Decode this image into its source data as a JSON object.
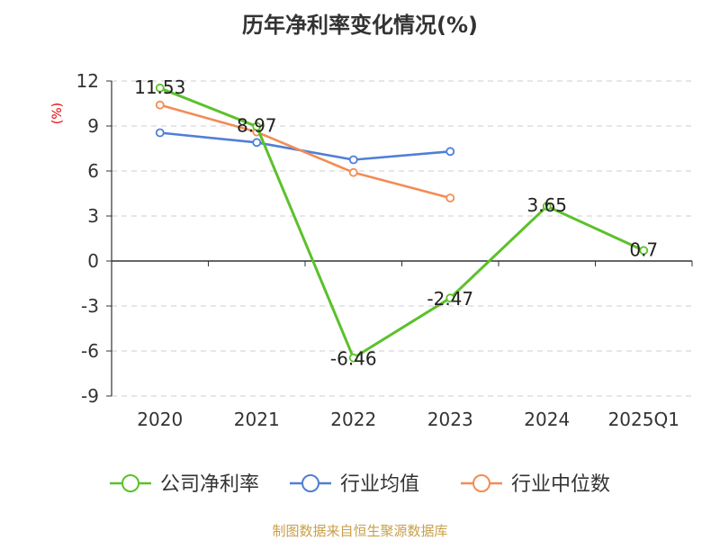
{
  "chart_data": {
    "type": "line",
    "title": "历年净利率变化情况(%)",
    "ylabel": "(%)",
    "xlabel": "",
    "categories": [
      "2020",
      "2021",
      "2022",
      "2023",
      "2024",
      "2025Q1"
    ],
    "ylim": [
      -9,
      12
    ],
    "yticks": [
      12,
      9,
      6,
      3,
      0,
      -3,
      -6,
      -9
    ],
    "grid": true,
    "legend_position": "bottom",
    "series": [
      {
        "name": "公司净利率",
        "color": "#5cc12b",
        "values": [
          11.53,
          8.97,
          -6.46,
          -2.47,
          3.65,
          0.7
        ],
        "labels": [
          "11.53",
          "8.97",
          "-6.46",
          "-2.47",
          "3.65",
          "0.7"
        ]
      },
      {
        "name": "行业均值",
        "color": "#4f7fd8",
        "values": [
          8.55,
          7.9,
          6.75,
          7.3,
          null,
          null
        ]
      },
      {
        "name": "行业中位数",
        "color": "#f28c55",
        "values": [
          10.4,
          8.6,
          5.9,
          4.2,
          null,
          null
        ]
      }
    ]
  },
  "source": "制图数据来自恒生聚源数据库"
}
